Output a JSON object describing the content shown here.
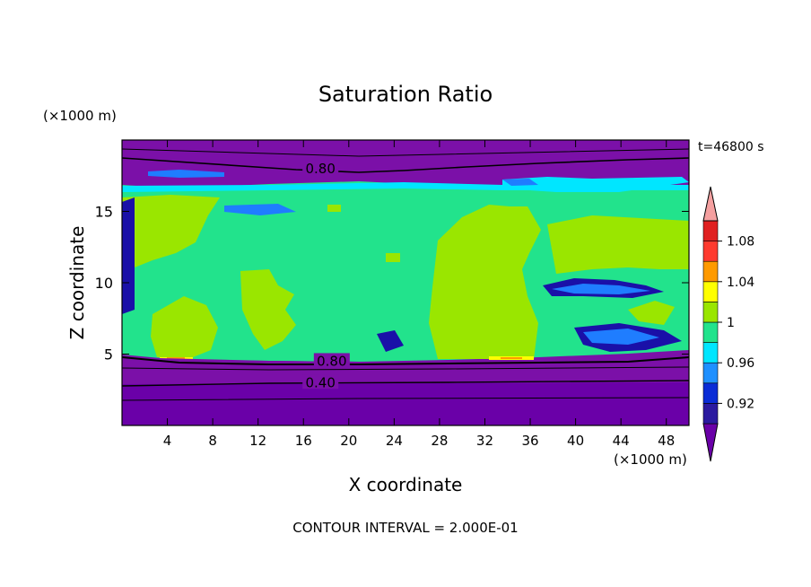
{
  "chart_data": {
    "type": "contour",
    "title": "Saturation Ratio",
    "xlabel": "X coordinate",
    "ylabel": "Z coordinate",
    "x_unit": "(×1000 m)",
    "y_unit": "(×1000 m)",
    "time_label": "t=46800 s",
    "footer": "CONTOUR INTERVAL = 2.000E-01",
    "xlim": [
      0,
      50
    ],
    "ylim": [
      0,
      20
    ],
    "x_ticks": [
      "4",
      "8",
      "12",
      "16",
      "20",
      "24",
      "28",
      "32",
      "36",
      "40",
      "44",
      "48"
    ],
    "x_tick_values": [
      4,
      8,
      12,
      16,
      20,
      24,
      28,
      32,
      36,
      40,
      44,
      48
    ],
    "y_ticks": [
      "5",
      "10",
      "15"
    ],
    "y_tick_values": [
      5,
      10,
      15
    ],
    "contour_labels": [
      {
        "text": "0.80",
        "x": 17.5,
        "z": 18.0
      },
      {
        "text": "0.80",
        "x": 18.5,
        "z": 4.5
      },
      {
        "text": "0.40",
        "x": 17.5,
        "z": 3.0
      }
    ],
    "colorbar": {
      "labels": [
        "1.08",
        "1.04",
        "1",
        "0.96",
        "0.92"
      ],
      "label_values": [
        1.08,
        1.04,
        1.0,
        0.96,
        0.92
      ],
      "levels": [
        0.9,
        0.92,
        0.94,
        0.96,
        0.98,
        1.0,
        1.02,
        1.04,
        1.06,
        1.08,
        1.1
      ],
      "colors": [
        "#6a00a8",
        "#2b1aa0",
        "#0a2cd6",
        "#1f90ff",
        "#00e6ff",
        "#22e38c",
        "#9ae600",
        "#ffff00",
        "#ff9a00",
        "#ff3b2f",
        "#e02020",
        "#f5a0a0"
      ]
    },
    "colors": {
      "dry": "#7b10a8",
      "drydeep": "#6a00a8",
      "navy": "#1a10a8",
      "blue": "#1f7dff",
      "cyan": "#00e6ff",
      "green": "#22e38c",
      "lime": "#9ae600",
      "yellow": "#ffff00",
      "orange": "#ff9a00"
    }
  }
}
